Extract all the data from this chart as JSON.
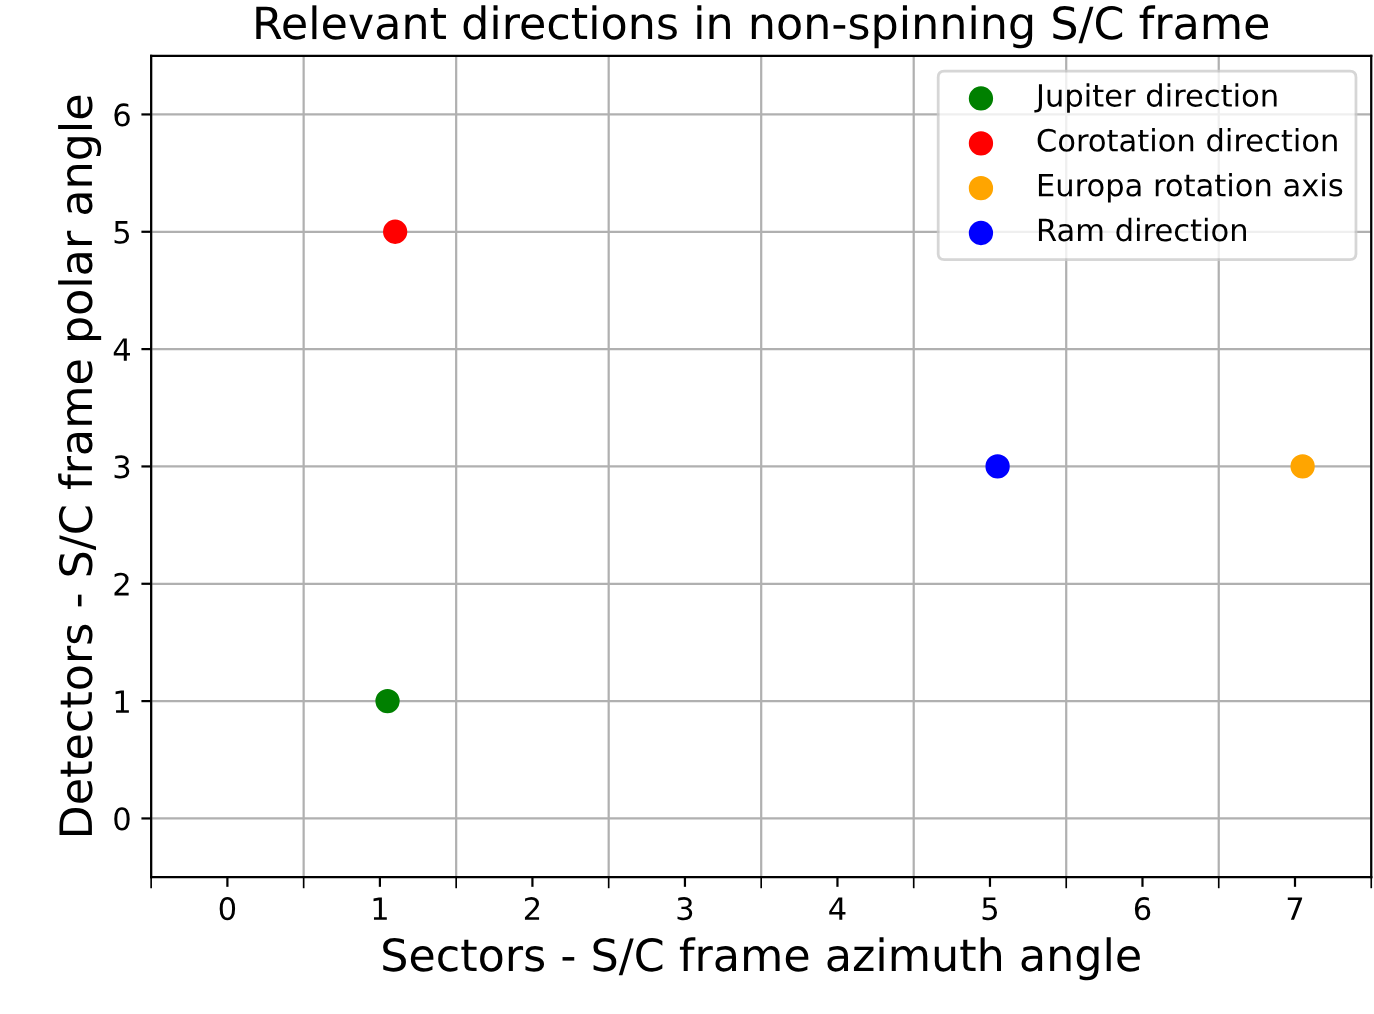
{
  "chart_data": {
    "type": "scatter",
    "title": "Relevant directions in non-spinning S/C frame",
    "xlabel": "Sectors - S/C frame azimuth angle",
    "ylabel": "Detectors - S/C frame polar angle",
    "series": [
      {
        "name": "Jupiter direction",
        "color": "#008000",
        "x": [
          1.05
        ],
        "values": [
          1
        ]
      },
      {
        "name": "Corotation direction",
        "color": "#ff0000",
        "x": [
          1.1
        ],
        "values": [
          5
        ]
      },
      {
        "name": "Europa rotation axis",
        "color": "#ffa500",
        "x": [
          7.05
        ],
        "values": [
          3
        ]
      },
      {
        "name": "Ram direction",
        "color": "#0000ff",
        "x": [
          5.05
        ],
        "values": [
          3
        ]
      }
    ],
    "xlim": [
      -0.5,
      7.5
    ],
    "ylim": [
      -0.5,
      6.5
    ],
    "xticks": [
      {
        "value": -0.5,
        "label": null
      },
      0,
      {
        "value": 0.5,
        "label": null
      },
      1,
      {
        "value": 1.5,
        "label": null
      },
      2,
      {
        "value": 2.5,
        "label": null
      },
      3,
      {
        "value": 3.5,
        "label": null
      },
      4,
      {
        "value": 4.5,
        "label": null
      },
      5,
      {
        "value": 5.5,
        "label": null
      },
      6,
      {
        "value": 6.5,
        "label": null
      },
      7,
      {
        "value": 7.5,
        "label": null
      }
    ],
    "yticks": [
      0,
      1,
      2,
      3,
      4,
      5,
      6
    ],
    "grid": true,
    "legend": "top right",
    "marker": "circle"
  }
}
